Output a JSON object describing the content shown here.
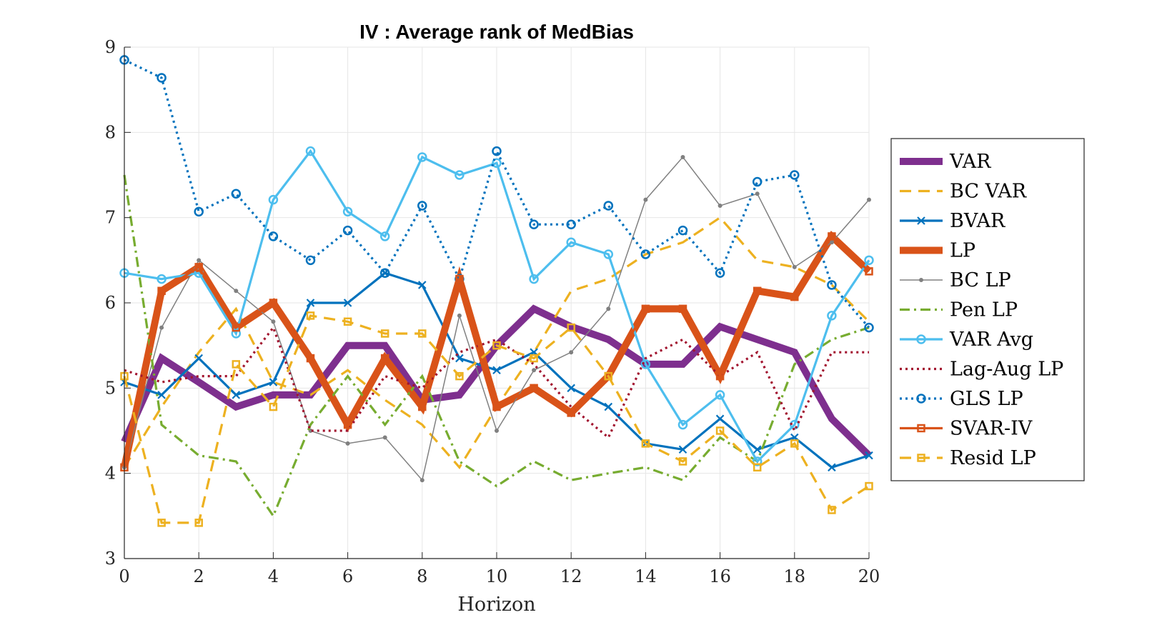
{
  "chart_data": {
    "type": "line",
    "title": "IV : Average rank of MedBias",
    "xlabel": "Horizon",
    "ylabel": "",
    "xlim": [
      0,
      20
    ],
    "ylim": [
      3,
      9
    ],
    "xticks": [
      0,
      2,
      4,
      6,
      8,
      10,
      12,
      14,
      16,
      18,
      20
    ],
    "yticks": [
      3,
      4,
      5,
      6,
      7,
      8,
      9
    ],
    "grid": true,
    "legend_position": "right",
    "x": [
      0,
      1,
      2,
      3,
      4,
      5,
      6,
      7,
      8,
      9,
      10,
      11,
      12,
      13,
      14,
      15,
      16,
      17,
      18,
      19,
      20
    ],
    "series": [
      {
        "name": "VAR",
        "color": "#7e2f8e",
        "dash": "solid",
        "marker": "none",
        "width": "thick",
        "values": [
          4.37,
          5.35,
          5.07,
          4.78,
          4.92,
          4.92,
          5.5,
          5.5,
          4.86,
          4.92,
          5.5,
          5.93,
          5.72,
          5.57,
          5.28,
          5.28,
          5.72,
          5.57,
          5.42,
          4.64,
          4.21
        ]
      },
      {
        "name": "BC VAR",
        "color": "#edb120",
        "dash": "dashed",
        "marker": "none",
        "width": "normal",
        "values": [
          4.07,
          4.78,
          5.42,
          5.93,
          5.07,
          4.92,
          5.21,
          4.86,
          4.57,
          4.07,
          4.78,
          5.42,
          6.14,
          6.28,
          6.57,
          6.71,
          7.0,
          6.5,
          6.42,
          6.21,
          5.78
        ]
      },
      {
        "name": "BVAR",
        "color": "#0072bd",
        "dash": "solid",
        "marker": "x",
        "width": "normal",
        "values": [
          5.07,
          4.92,
          5.35,
          4.92,
          5.07,
          6.0,
          6.0,
          6.35,
          6.21,
          5.35,
          5.21,
          5.42,
          5.0,
          4.78,
          4.35,
          4.28,
          4.64,
          4.28,
          4.42,
          4.07,
          4.21
        ]
      },
      {
        "name": "LP",
        "color": "#d95319",
        "dash": "solid",
        "marker": "none",
        "width": "thick",
        "values": [
          4.07,
          6.14,
          6.42,
          5.71,
          6.0,
          5.35,
          4.57,
          5.35,
          4.78,
          6.28,
          4.78,
          5.0,
          4.71,
          5.14,
          5.93,
          5.93,
          5.14,
          6.14,
          6.07,
          6.78,
          6.37
        ]
      },
      {
        "name": "BC LP",
        "color": "#808080",
        "dash": "solid",
        "marker": "dot",
        "width": "thin",
        "values": [
          4.07,
          5.71,
          6.5,
          6.14,
          5.78,
          4.5,
          4.35,
          4.42,
          3.92,
          5.85,
          4.5,
          5.21,
          5.42,
          5.93,
          7.21,
          7.71,
          7.14,
          7.28,
          6.42,
          6.71,
          7.21
        ]
      },
      {
        "name": "Pen LP",
        "color": "#77ac30",
        "dash": "dashdot",
        "marker": "none",
        "width": "normal",
        "values": [
          7.5,
          4.57,
          4.21,
          4.14,
          3.5,
          4.57,
          5.14,
          4.57,
          5.14,
          4.14,
          3.85,
          4.14,
          3.92,
          4.0,
          4.07,
          3.92,
          4.42,
          4.14,
          5.28,
          5.57,
          5.71
        ]
      },
      {
        "name": "VAR Avg",
        "color": "#4dbeee",
        "dash": "solid",
        "marker": "circle",
        "width": "normal",
        "values": [
          6.35,
          6.28,
          6.35,
          5.64,
          7.21,
          7.78,
          7.07,
          6.78,
          7.71,
          7.5,
          7.64,
          6.28,
          6.71,
          6.57,
          5.28,
          4.57,
          4.92,
          4.14,
          4.57,
          5.85,
          6.5
        ]
      },
      {
        "name": "Lag-Aug LP",
        "color": "#a2142f",
        "dash": "dotted",
        "marker": "none",
        "width": "normal",
        "values": [
          5.21,
          5.07,
          5.14,
          5.14,
          5.71,
          4.5,
          4.5,
          5.14,
          5.0,
          5.42,
          5.57,
          5.28,
          4.78,
          4.42,
          5.35,
          5.57,
          5.14,
          5.42,
          4.5,
          5.42,
          5.42
        ]
      },
      {
        "name": "GLS LP",
        "color": "#0072bd",
        "dash": "dotted",
        "marker": "circle",
        "width": "normal",
        "values": [
          8.85,
          8.64,
          7.07,
          7.28,
          6.78,
          6.5,
          6.85,
          6.35,
          7.14,
          6.28,
          7.78,
          6.92,
          6.92,
          7.14,
          6.57,
          6.85,
          6.35,
          7.42,
          7.5,
          6.21,
          5.71
        ]
      },
      {
        "name": "SVAR-IV",
        "color": "#d95319",
        "dash": "solid",
        "marker": "square",
        "width": "normal",
        "values": [
          4.07,
          6.14,
          6.42,
          5.71,
          6.0,
          5.35,
          4.57,
          5.35,
          4.78,
          6.28,
          4.78,
          5.0,
          4.71,
          5.14,
          5.93,
          5.93,
          5.14,
          6.14,
          6.07,
          6.78,
          6.37
        ]
      },
      {
        "name": "Resid LP",
        "color": "#edb120",
        "dash": "dashed",
        "marker": "square",
        "width": "normal",
        "values": [
          5.14,
          3.42,
          3.42,
          5.28,
          4.78,
          5.85,
          5.78,
          5.64,
          5.64,
          5.14,
          5.5,
          5.35,
          5.71,
          5.14,
          4.35,
          4.14,
          4.5,
          4.07,
          4.35,
          3.57,
          3.85
        ]
      }
    ]
  }
}
